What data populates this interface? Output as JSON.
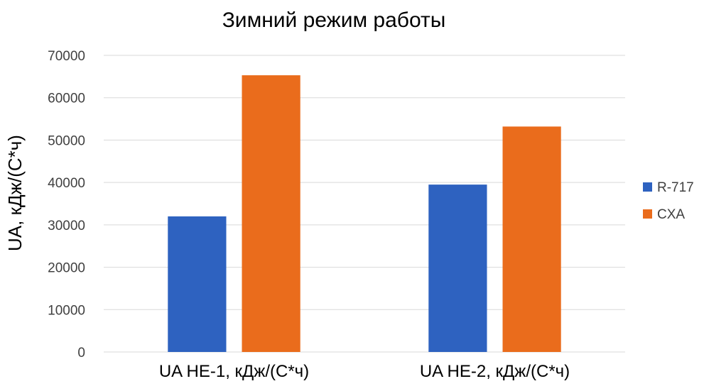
{
  "chart_data": {
    "type": "bar",
    "title": "Зимний режим работы",
    "xlabel": "",
    "ylabel": "UA, кДж/(С*ч)",
    "categories": [
      "UA HE-1, кДж/(С*ч)",
      "UA HE-2, кДж/(С*ч)"
    ],
    "series": [
      {
        "name": "R-717",
        "values": [
          32000,
          39500
        ],
        "color": "#2e62c0"
      },
      {
        "name": "CXA",
        "values": [
          65300,
          53200
        ],
        "color": "#ea6c1c"
      }
    ],
    "ylim": [
      0,
      70000
    ],
    "yticks": [
      "0",
      "10000",
      "20000",
      "30000",
      "40000",
      "50000",
      "60000",
      "70000"
    ],
    "grid": true,
    "legend_position": "right"
  }
}
